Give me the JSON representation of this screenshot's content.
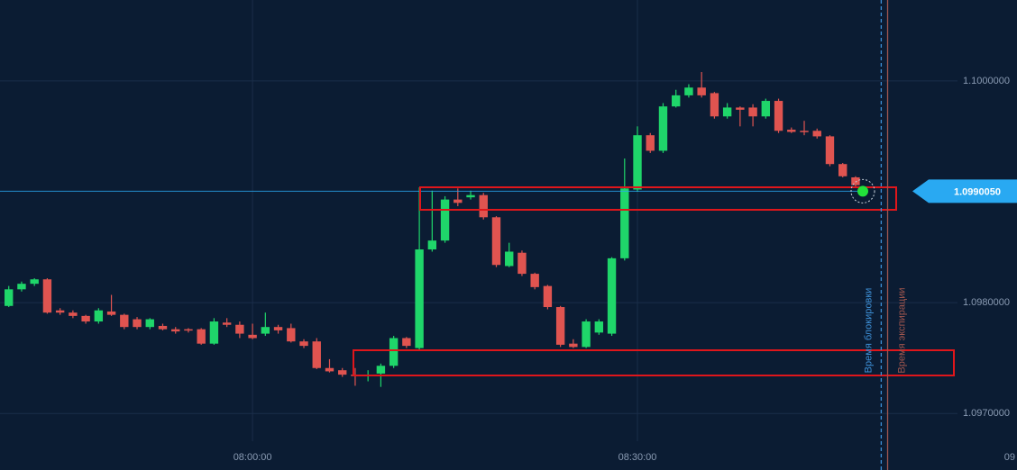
{
  "chart_data": {
    "type": "candlestick",
    "x": [
      "07:41:00",
      "07:42:00",
      "07:43:00",
      "07:44:00",
      "07:45:00",
      "07:46:00",
      "07:47:00",
      "07:48:00",
      "07:49:00",
      "07:50:00",
      "07:51:00",
      "07:52:00",
      "07:53:00",
      "07:54:00",
      "07:55:00",
      "07:56:00",
      "07:57:00",
      "07:58:00",
      "07:59:00",
      "08:00:00",
      "08:01:00",
      "08:02:00",
      "08:03:00",
      "08:04:00",
      "08:05:00",
      "08:06:00",
      "08:07:00",
      "08:08:00",
      "08:09:00",
      "08:10:00",
      "08:11:00",
      "08:12:00",
      "08:13:00",
      "08:14:00",
      "08:15:00",
      "08:16:00",
      "08:17:00",
      "08:18:00",
      "08:19:00",
      "08:20:00",
      "08:21:00",
      "08:22:00",
      "08:23:00",
      "08:24:00",
      "08:25:00",
      "08:26:00",
      "08:27:00",
      "08:28:00",
      "08:29:00",
      "08:30:00",
      "08:31:00",
      "08:32:00",
      "08:33:00",
      "08:34:00",
      "08:35:00",
      "08:36:00",
      "08:37:00",
      "08:38:00",
      "08:39:00",
      "08:40:00",
      "08:41:00",
      "08:42:00",
      "08:43:00",
      "08:44:00",
      "08:45:00",
      "08:46:00",
      "08:47:00"
    ],
    "open": [
      1.09797,
      1.09812,
      1.09817,
      1.09821,
      1.09793,
      1.09791,
      1.09788,
      1.09783,
      1.09792,
      1.09789,
      1.09785,
      1.09778,
      1.09779,
      1.09776,
      1.09776,
      1.09776,
      1.09763,
      1.09782,
      1.0978,
      1.09771,
      1.09772,
      1.09778,
      1.09777,
      1.09765,
      1.09765,
      1.09741,
      1.09739,
      1.09735,
      1.09734,
      1.09736,
      1.09743,
      1.09768,
      1.09759,
      1.09848,
      1.09856,
      1.09893,
      1.09895,
      1.09897,
      1.09877,
      1.09833,
      1.09845,
      1.09826,
      1.09815,
      1.09796,
      1.09763,
      1.0976,
      1.09773,
      1.09772,
      1.0984,
      1.09902,
      1.09951,
      1.09937,
      1.09977,
      1.09987,
      1.09994,
      1.09989,
      1.09968,
      1.09976,
      1.09976,
      1.09968,
      1.09982,
      1.09956,
      1.09955,
      1.09955,
      1.0995,
      1.09925,
      1.09913
    ],
    "high": [
      1.09815,
      1.09819,
      1.09822,
      1.09822,
      1.09795,
      1.09793,
      1.09789,
      1.09795,
      1.09807,
      1.0979,
      1.09787,
      1.09786,
      1.09781,
      1.09778,
      1.09777,
      1.09777,
      1.09786,
      1.09786,
      1.09783,
      1.09781,
      1.09791,
      1.0978,
      1.09781,
      1.09767,
      1.09768,
      1.09749,
      1.09741,
      1.09741,
      1.09739,
      1.09745,
      1.0977,
      1.09769,
      1.09904,
      1.09901,
      1.09896,
      1.09903,
      1.09901,
      1.09899,
      1.09878,
      1.09854,
      1.09847,
      1.09827,
      1.09816,
      1.09797,
      1.09767,
      1.09785,
      1.09785,
      1.09841,
      1.0993,
      1.09959,
      1.09953,
      1.0998,
      1.09992,
      1.09997,
      1.10008,
      1.0999,
      1.0998,
      1.09977,
      1.09979,
      1.09984,
      1.09984,
      1.09958,
      1.09964,
      1.09957,
      1.09951,
      1.09926,
      1.09914
    ],
    "low": [
      1.09796,
      1.0981,
      1.09815,
      1.0979,
      1.09789,
      1.09786,
      1.09781,
      1.09781,
      1.09788,
      1.09776,
      1.09776,
      1.09776,
      1.09775,
      1.09772,
      1.09773,
      1.09762,
      1.09762,
      1.09778,
      1.09768,
      1.09767,
      1.0977,
      1.09772,
      1.09764,
      1.09759,
      1.0974,
      1.09737,
      1.09733,
      1.09725,
      1.09729,
      1.09724,
      1.09741,
      1.09759,
      1.09757,
      1.09846,
      1.09854,
      1.09887,
      1.09893,
      1.09875,
      1.09832,
      1.09832,
      1.09824,
      1.09812,
      1.09794,
      1.0976,
      1.09759,
      1.09759,
      1.09771,
      1.0977,
      1.09838,
      1.099,
      1.09935,
      1.09935,
      1.09976,
      1.09985,
      1.09985,
      1.09966,
      1.09966,
      1.09959,
      1.09959,
      1.09966,
      1.09953,
      1.09953,
      1.09951,
      1.09948,
      1.09923,
      1.09913,
      1.09904
    ],
    "close": [
      1.09812,
      1.09817,
      1.09821,
      1.09791,
      1.09791,
      1.09788,
      1.09783,
      1.09793,
      1.09789,
      1.09778,
      1.09778,
      1.09785,
      1.09776,
      1.09774,
      1.09775,
      1.09763,
      1.09783,
      1.0978,
      1.09772,
      1.09768,
      1.09778,
      1.09775,
      1.09765,
      1.09761,
      1.09741,
      1.09738,
      1.09735,
      1.09734,
      1.09735,
      1.09743,
      1.09768,
      1.09761,
      1.09848,
      1.09856,
      1.09893,
      1.0989,
      1.09897,
      1.09877,
      1.09834,
      1.09846,
      1.09826,
      1.09814,
      1.09796,
      1.09762,
      1.0976,
      1.09783,
      1.09783,
      1.0984,
      1.09903,
      1.09951,
      1.09937,
      1.09977,
      1.09987,
      1.09994,
      1.09987,
      1.09968,
      1.09976,
      1.09974,
      1.09968,
      1.09982,
      1.09955,
      1.09954,
      1.09954,
      1.0995,
      1.09925,
      1.09914,
      1.09906
    ],
    "up_color": "#1fd66a",
    "down_color": "#e05450",
    "xlim": [
      "07:40:19",
      "08:59:35"
    ],
    "xticks": [
      {
        "value": "08:00:00",
        "label": "08:00:00"
      },
      {
        "value": "08:30:00",
        "label": "08:30:00"
      },
      {
        "value": "09:00:00",
        "label": "09"
      }
    ],
    "ylim": [
      1.09675,
      1.10073
    ],
    "yticks": [
      {
        "value": 1.097,
        "label": "1.0970000"
      },
      {
        "value": 1.098,
        "label": "1.0980000"
      },
      {
        "value": 1.1,
        "label": "1.1000000"
      }
    ],
    "grid": true,
    "current_price": {
      "value": 1.099005,
      "label": "1.0990050",
      "color": "#29a9f2"
    },
    "vlines": [
      {
        "name": "Время блокировки",
        "x": "08:49:00",
        "color": "#3d8fd6"
      },
      {
        "name": "Время экспирации",
        "x": "08:49:30",
        "color": "#a0564e"
      }
    ]
  }
}
